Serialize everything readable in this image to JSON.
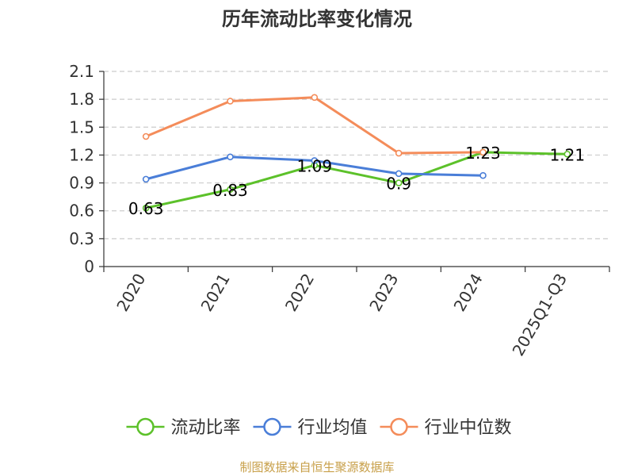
{
  "source": "制图数据来自恒生聚源数据库",
  "chart_data": {
    "type": "line",
    "title": "历年流动比率变化情况",
    "categories": [
      "2020",
      "2021",
      "2022",
      "2023",
      "2024",
      "2025Q1-Q3"
    ],
    "ylim": [
      0,
      2.1
    ],
    "yticks": [
      "0",
      "0.3",
      "0.6",
      "0.9",
      "1.2",
      "1.5",
      "1.8",
      "2.1"
    ],
    "grid": true,
    "legend_position": "bottom",
    "series": [
      {
        "name": "流动比率",
        "color": "#5cc12a",
        "values": [
          0.63,
          0.83,
          1.09,
          0.9,
          1.23,
          1.21
        ],
        "labels": [
          "0.63",
          "0.83",
          "1.09",
          "0.9",
          "1.23",
          "1.21"
        ]
      },
      {
        "name": "行业均值",
        "color": "#4a7ed8",
        "values": [
          0.94,
          1.18,
          1.14,
          1.0,
          0.98,
          null
        ]
      },
      {
        "name": "行业中位数",
        "color": "#f48c5a",
        "values": [
          1.4,
          1.78,
          1.82,
          1.22,
          1.23,
          null
        ]
      }
    ]
  }
}
